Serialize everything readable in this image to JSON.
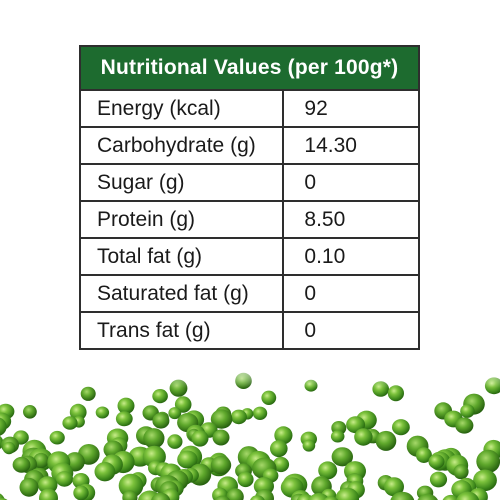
{
  "table": {
    "title": "Nutritional Values (per 100g*)",
    "rows": [
      {
        "name": "Energy (kcal)",
        "value": "92"
      },
      {
        "name": "Carbohydrate (g)",
        "value": "14.30"
      },
      {
        "name": "Sugar (g)",
        "value": "0"
      },
      {
        "name": "Protein (g)",
        "value": "8.50"
      },
      {
        "name": "Total fat (g)",
        "value": "0.10"
      },
      {
        "name": "Saturated fat (g)",
        "value": "0"
      },
      {
        "name": "Trans fat (g)",
        "value": "0"
      }
    ]
  },
  "colors": {
    "header_background": "#1d6b2f",
    "header_text": "#ffffff",
    "border": "#2e2e2e",
    "pea_green": "#4c9a22"
  }
}
